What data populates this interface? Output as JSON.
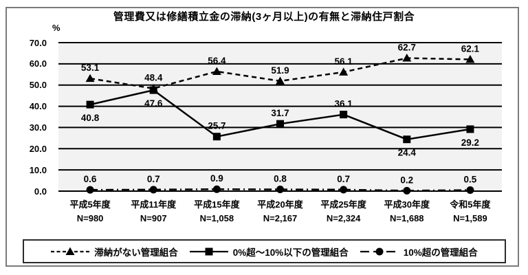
{
  "chart_data": {
    "type": "line",
    "title": "管理費又は修繕積立金の滞納(3ヶ月以上)の有無と滞納住戸割合",
    "unit_label": "%",
    "ylim": [
      0,
      70
    ],
    "ytick_step": 10,
    "yticks": [
      "70.0",
      "60.0",
      "50.0",
      "40.0",
      "30.0",
      "20.0",
      "10.0",
      "0.0"
    ],
    "grid": "horizontal-only",
    "legend_position": "bottom",
    "categories": [
      "平成5年度",
      "平成11年度",
      "平成15年度",
      "平成20年度",
      "平成25年度",
      "平成30年度",
      "令和5年度"
    ],
    "sample_sizes": [
      "N=980",
      "N=907",
      "N=1,058",
      "N=2,167",
      "N=2,324",
      "N=1,688",
      "N=1,589"
    ],
    "series": [
      {
        "name": "滞納がない管理組合",
        "values": [
          53.1,
          48.4,
          56.4,
          51.9,
          56.1,
          62.7,
          62.1
        ],
        "line": "dashed",
        "marker": "triangle",
        "label_side": [
          "above",
          "above",
          "above",
          "above",
          "above",
          "above",
          "above"
        ]
      },
      {
        "name": "0%超～10%以下の管理組合",
        "values": [
          40.8,
          47.6,
          25.7,
          31.7,
          36.1,
          24.4,
          29.2
        ],
        "line": "solid",
        "marker": "square",
        "label_side": [
          "below",
          "below",
          "above",
          "above",
          "above",
          "below",
          "below"
        ]
      },
      {
        "name": "10%超の管理組合",
        "values": [
          0.6,
          0.7,
          0.9,
          0.8,
          0.7,
          0.2,
          0.5
        ],
        "line": "dashdot",
        "marker": "circle",
        "label_side": [
          "above",
          "above",
          "above",
          "above",
          "above",
          "above",
          "above"
        ]
      }
    ],
    "colors": {
      "line": "#000000",
      "plot_bg": "#f2f2f2",
      "frame_border": "#7a7a7a",
      "legend_border": "#2b2b2b",
      "text": "#000000"
    }
  }
}
